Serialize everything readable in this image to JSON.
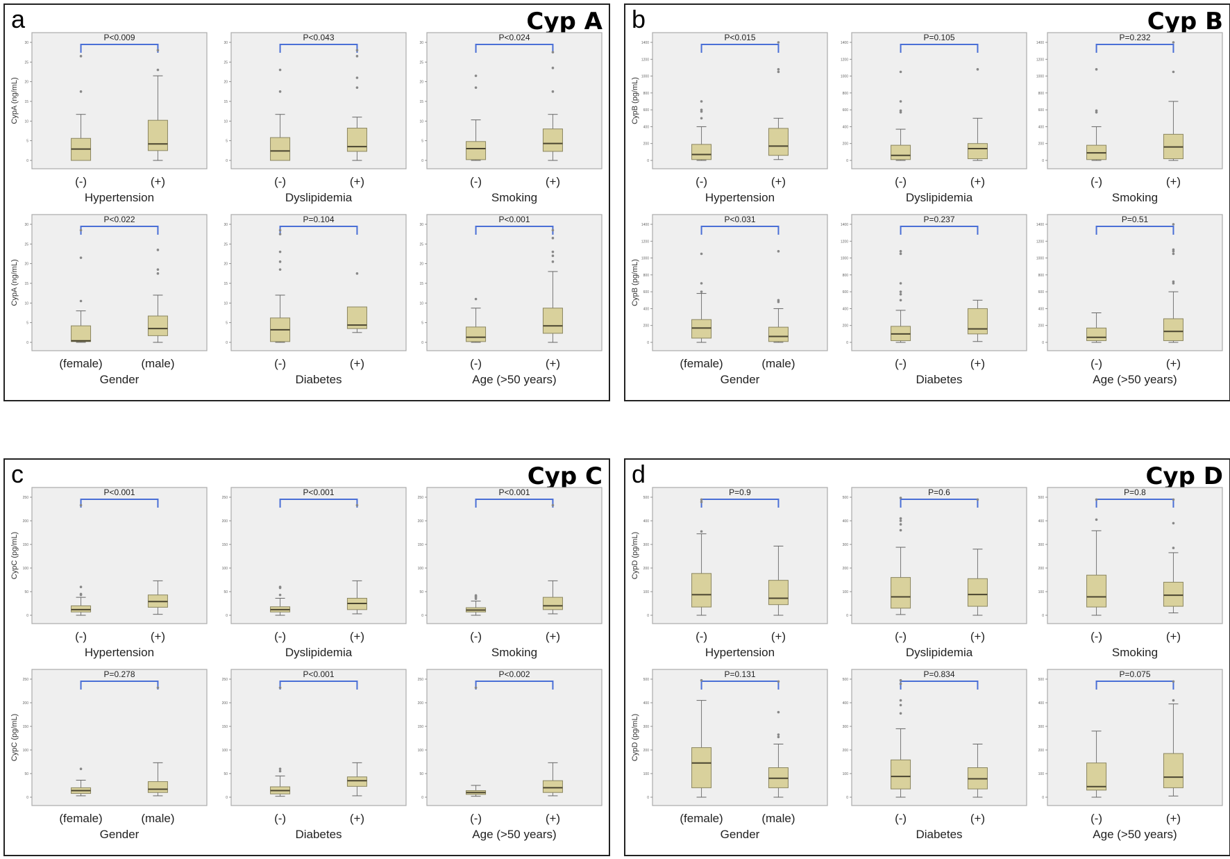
{
  "chart_data": [
    {
      "type": "boxplot",
      "panel_label": "a",
      "title": "Cyp A",
      "ylabel": "CypA (ng/mL)",
      "ylim": [
        0,
        30
      ],
      "yticks": [
        0,
        5,
        10,
        15,
        20,
        25,
        30
      ],
      "subplots": [
        {
          "group": "Hypertension",
          "p_value": "P<0.009",
          "categories": [
            "(-)",
            "(+)"
          ],
          "boxes": [
            {
              "min": 0,
              "q1": 0,
              "median": 2.9,
              "q3": 5.6,
              "max": 11.7,
              "outliers": [
                17.5,
                26.5
              ]
            },
            {
              "min": 0,
              "q1": 2.5,
              "median": 4.2,
              "q3": 10.2,
              "max": 21.5,
              "outliers": [
                23,
                28
              ]
            }
          ]
        },
        {
          "group": "Dyslipidemia",
          "p_value": "P<0.043",
          "categories": [
            "(-)",
            "(+)"
          ],
          "boxes": [
            {
              "min": 0,
              "q1": 0,
              "median": 2.4,
              "q3": 5.8,
              "max": 11.7,
              "outliers": [
                17.5,
                23
              ]
            },
            {
              "min": 0,
              "q1": 2.3,
              "median": 3.5,
              "q3": 8.2,
              "max": 11,
              "outliers": [
                18.5,
                21,
                26.5,
                28
              ]
            }
          ]
        },
        {
          "group": "Smoking",
          "p_value": "P<0.024",
          "categories": [
            "(-)",
            "(+)"
          ],
          "boxes": [
            {
              "min": 0,
              "q1": 0.2,
              "median": 3,
              "q3": 4.8,
              "max": 10.3,
              "outliers": [
                18.5,
                21.5
              ]
            },
            {
              "min": 0,
              "q1": 2.3,
              "median": 4.3,
              "q3": 8,
              "max": 11.7,
              "outliers": [
                17.5,
                23.5,
                27.5
              ]
            }
          ]
        },
        {
          "group": "Gender",
          "p_value": "P<0.022",
          "categories": [
            "(female)",
            "(male)"
          ],
          "boxes": [
            {
              "min": 0,
              "q1": 0.2,
              "median": 0.4,
              "q3": 4.2,
              "max": 8,
              "outliers": [
                10.5,
                21.5,
                28.5
              ]
            },
            {
              "min": 0,
              "q1": 1.7,
              "median": 3.5,
              "q3": 6.7,
              "max": 12,
              "outliers": [
                17.5,
                18.5,
                23.5
              ]
            }
          ]
        },
        {
          "group": "Diabetes",
          "p_value": "P=0.104",
          "categories": [
            "(-)",
            "(+)"
          ],
          "boxes": [
            {
              "min": 0,
              "q1": 0.2,
              "median": 3.2,
              "q3": 6.2,
              "max": 12,
              "outliers": [
                18.5,
                20.5,
                23,
                27.5,
                28.5
              ]
            },
            {
              "min": 2.5,
              "q1": 3.5,
              "median": 4.4,
              "q3": 9,
              "max": 9,
              "outliers": [
                17.5
              ]
            }
          ]
        },
        {
          "group": "Age (>50 years)",
          "p_value": "P<0.001",
          "categories": [
            "(-)",
            "(+)"
          ],
          "boxes": [
            {
              "min": 0,
              "q1": 0.2,
              "median": 1.3,
              "q3": 3.9,
              "max": 8.7,
              "outliers": [
                11
              ]
            },
            {
              "min": 0,
              "q1": 2.3,
              "median": 4.2,
              "q3": 8.7,
              "max": 18,
              "outliers": [
                20.5,
                22,
                23,
                26.5,
                28.5
              ]
            }
          ]
        }
      ]
    },
    {
      "type": "boxplot",
      "panel_label": "b",
      "title": "Cyp  B",
      "ylabel": "CypB (pg/mL)",
      "ylim": [
        0,
        1400
      ],
      "yticks": [
        0,
        200,
        400,
        600,
        800,
        1000,
        1200,
        1400
      ],
      "subplots": [
        {
          "group": "Hypertension",
          "p_value": "P<0.015",
          "categories": [
            "(-)",
            "(+)"
          ],
          "boxes": [
            {
              "min": 0,
              "q1": 10,
              "median": 70,
              "q3": 190,
              "max": 400,
              "outliers": [
                500,
                580,
                600,
                700
              ]
            },
            {
              "min": 10,
              "q1": 60,
              "median": 170,
              "q3": 380,
              "max": 500,
              "outliers": [
                1050,
                1080,
                1400
              ]
            }
          ]
        },
        {
          "group": "Dyslipidemia",
          "p_value": "P=0.105",
          "categories": [
            "(-)",
            "(+)"
          ],
          "boxes": [
            {
              "min": 0,
              "q1": 10,
              "median": 60,
              "q3": 180,
              "max": 370,
              "outliers": [
                570,
                590,
                700,
                1050
              ]
            },
            {
              "min": 0,
              "q1": 20,
              "median": 140,
              "q3": 200,
              "max": 500,
              "outliers": [
                1080
              ]
            }
          ]
        },
        {
          "group": "Smoking",
          "p_value": "P=0.232",
          "categories": [
            "(-)",
            "(+)"
          ],
          "boxes": [
            {
              "min": 0,
              "q1": 10,
              "median": 90,
              "q3": 180,
              "max": 400,
              "outliers": [
                570,
                590,
                1080
              ]
            },
            {
              "min": 0,
              "q1": 20,
              "median": 160,
              "q3": 310,
              "max": 700,
              "outliers": [
                1050,
                1400
              ]
            }
          ]
        },
        {
          "group": "Gender",
          "p_value": "P<0.031",
          "categories": [
            "(female)",
            "(male)"
          ],
          "boxes": [
            {
              "min": 0,
              "q1": 50,
              "median": 170,
              "q3": 270,
              "max": 580,
              "outliers": [
                600,
                700,
                1050
              ]
            },
            {
              "min": 0,
              "q1": 10,
              "median": 70,
              "q3": 180,
              "max": 400,
              "outliers": [
                480,
                500,
                1080
              ]
            }
          ]
        },
        {
          "group": "Diabetes",
          "p_value": "P=0.237",
          "categories": [
            "(-)",
            "(+)"
          ],
          "boxes": [
            {
              "min": 0,
              "q1": 20,
              "median": 100,
              "q3": 190,
              "max": 380,
              "outliers": [
                500,
                570,
                600,
                700,
                1050,
                1080
              ]
            },
            {
              "min": 10,
              "q1": 100,
              "median": 160,
              "q3": 400,
              "max": 500,
              "outliers": []
            }
          ]
        },
        {
          "group": "Age (>50 years)",
          "p_value": "P=0.51",
          "categories": [
            "(-)",
            "(+)"
          ],
          "boxes": [
            {
              "min": 0,
              "q1": 20,
              "median": 60,
              "q3": 170,
              "max": 350,
              "outliers": []
            },
            {
              "min": 0,
              "q1": 20,
              "median": 130,
              "q3": 280,
              "max": 600,
              "outliers": [
                700,
                720,
                1050,
                1080,
                1100,
                1400
              ]
            }
          ]
        }
      ]
    },
    {
      "type": "boxplot",
      "panel_label": "c",
      "title": "Cyp C",
      "ylabel": "CypC (pg/mL)",
      "ylim": [
        0,
        250
      ],
      "yticks": [
        0,
        50,
        100,
        150,
        200,
        250
      ],
      "subplots": [
        {
          "group": "Hypertension",
          "p_value": "P<0.001",
          "categories": [
            "(-)",
            "(+)"
          ],
          "boxes": [
            {
              "min": 0,
              "q1": 7,
              "median": 12,
              "q3": 20,
              "max": 38,
              "outliers": [
                43,
                45,
                60,
                233
              ]
            },
            {
              "min": 2,
              "q1": 17,
              "median": 29,
              "q3": 43,
              "max": 73,
              "outliers": []
            }
          ]
        },
        {
          "group": "Dyslipidemia",
          "p_value": "P<0.001",
          "categories": [
            "(-)",
            "(+)"
          ],
          "boxes": [
            {
              "min": 0,
              "q1": 7,
              "median": 12,
              "q3": 18,
              "max": 36,
              "outliers": [
                43,
                58,
                60
              ]
            },
            {
              "min": 3,
              "q1": 12,
              "median": 25,
              "q3": 36,
              "max": 73,
              "outliers": [
                233
              ]
            }
          ]
        },
        {
          "group": "Smoking",
          "p_value": "P<0.001",
          "categories": [
            "(-)",
            "(+)"
          ],
          "boxes": [
            {
              "min": 0,
              "q1": 7,
              "median": 11,
              "q3": 16,
              "max": 30,
              "outliers": [
                35,
                38,
                40,
                42
              ]
            },
            {
              "min": 3,
              "q1": 12,
              "median": 20,
              "q3": 38,
              "max": 73,
              "outliers": [
                233
              ]
            }
          ]
        },
        {
          "group": "Gender",
          "p_value": "P=0.278",
          "categories": [
            "(female)",
            "(male)"
          ],
          "boxes": [
            {
              "min": 3,
              "q1": 8,
              "median": 14,
              "q3": 20,
              "max": 36,
              "outliers": [
                60
              ]
            },
            {
              "min": 3,
              "q1": 10,
              "median": 17,
              "q3": 33,
              "max": 73,
              "outliers": [
                232
              ]
            }
          ]
        },
        {
          "group": "Diabetes",
          "p_value": "P<0.001",
          "categories": [
            "(-)",
            "(+)"
          ],
          "boxes": [
            {
              "min": 2,
              "q1": 7,
              "median": 14,
              "q3": 22,
              "max": 45,
              "outliers": [
                55,
                60,
                232
              ]
            },
            {
              "min": 3,
              "q1": 23,
              "median": 35,
              "q3": 43,
              "max": 73,
              "outliers": []
            }
          ]
        },
        {
          "group": "Age (>50 years)",
          "p_value": "P<0.002",
          "categories": [
            "(-)",
            "(+)"
          ],
          "boxes": [
            {
              "min": 2,
              "q1": 6,
              "median": 10,
              "q3": 14,
              "max": 25,
              "outliers": [
                232
              ]
            },
            {
              "min": 3,
              "q1": 10,
              "median": 20,
              "q3": 35,
              "max": 73,
              "outliers": []
            }
          ]
        }
      ]
    },
    {
      "type": "boxplot",
      "panel_label": "d",
      "title": "Cyp  D",
      "ylabel": "CypD (pg/mL)",
      "ylim": [
        0,
        500
      ],
      "yticks": [
        0,
        100,
        200,
        300,
        400,
        500
      ],
      "subplots": [
        {
          "group": "Hypertension",
          "p_value": "P=0.9",
          "categories": [
            "(-)",
            "(+)"
          ],
          "boxes": [
            {
              "min": 0,
              "q1": 35,
              "median": 87,
              "q3": 177,
              "max": 345,
              "outliers": [
                355,
                480,
                490
              ]
            },
            {
              "min": 0,
              "q1": 45,
              "median": 72,
              "q3": 148,
              "max": 293,
              "outliers": []
            }
          ]
        },
        {
          "group": "Dyslipidemia",
          "p_value": "P=0.6",
          "categories": [
            "(-)",
            "(+)"
          ],
          "boxes": [
            {
              "min": 3,
              "q1": 30,
              "median": 78,
              "q3": 160,
              "max": 288,
              "outliers": [
                360,
                385,
                400,
                410,
                497
              ]
            },
            {
              "min": 0,
              "q1": 38,
              "median": 88,
              "q3": 155,
              "max": 280,
              "outliers": [
                490
              ]
            }
          ]
        },
        {
          "group": "Smoking",
          "p_value": "P=0.8",
          "categories": [
            "(-)",
            "(+)"
          ],
          "boxes": [
            {
              "min": 0,
              "q1": 35,
              "median": 78,
              "q3": 170,
              "max": 358,
              "outliers": [
                405,
                490
              ]
            },
            {
              "min": 10,
              "q1": 38,
              "median": 85,
              "q3": 140,
              "max": 265,
              "outliers": [
                285,
                390,
                490
              ]
            }
          ]
        },
        {
          "group": "Gender",
          "p_value": "P=0.131",
          "categories": [
            "(female)",
            "(male)"
          ],
          "boxes": [
            {
              "min": 0,
              "q1": 40,
              "median": 145,
              "q3": 210,
              "max": 410,
              "outliers": [
                495
              ]
            },
            {
              "min": 0,
              "q1": 40,
              "median": 80,
              "q3": 125,
              "max": 225,
              "outliers": [
                255,
                265,
                360,
                490
              ]
            }
          ]
        },
        {
          "group": "Diabetes",
          "p_value": "P=0.834",
          "categories": [
            "(-)",
            "(+)"
          ],
          "boxes": [
            {
              "min": 0,
              "q1": 35,
              "median": 88,
              "q3": 158,
              "max": 290,
              "outliers": [
                355,
                390,
                410,
                480,
                495
              ]
            },
            {
              "min": 0,
              "q1": 35,
              "median": 78,
              "q3": 125,
              "max": 225,
              "outliers": []
            }
          ]
        },
        {
          "group": "Age (>50 years)",
          "p_value": "P=0.075",
          "categories": [
            "(-)",
            "(+)"
          ],
          "boxes": [
            {
              "min": 0,
              "q1": 30,
              "median": 45,
              "q3": 145,
              "max": 280,
              "outliers": []
            },
            {
              "min": 5,
              "q1": 40,
              "median": 85,
              "q3": 185,
              "max": 395,
              "outliers": [
                410,
                490
              ]
            }
          ]
        }
      ]
    }
  ],
  "colors": {
    "box_fill": "#d9d19c",
    "box_stroke": "#8b8660",
    "median": "#4a4530",
    "plot_bg": "#efefef",
    "bracket": "#4a6fd6",
    "outlier": "#888888"
  }
}
